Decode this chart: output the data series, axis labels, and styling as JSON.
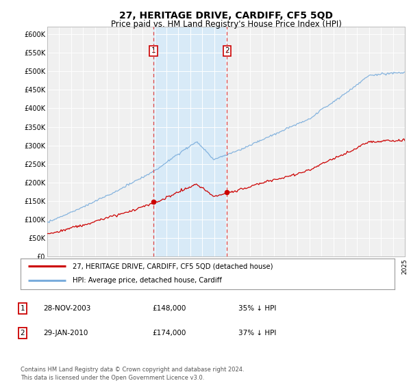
{
  "title": "27, HERITAGE DRIVE, CARDIFF, CF5 5QD",
  "subtitle": "Price paid vs. HM Land Registry's House Price Index (HPI)",
  "title_fontsize": 10,
  "subtitle_fontsize": 8.5,
  "ylim": [
    0,
    620000
  ],
  "yticks": [
    0,
    50000,
    100000,
    150000,
    200000,
    250000,
    300000,
    350000,
    400000,
    450000,
    500000,
    550000,
    600000
  ],
  "ytick_labels": [
    "£0",
    "£50K",
    "£100K",
    "£150K",
    "£200K",
    "£250K",
    "£300K",
    "£350K",
    "£400K",
    "£450K",
    "£500K",
    "£550K",
    "£600K"
  ],
  "x_start_year": 1995,
  "x_end_year": 2025,
  "hpi_color": "#7aaddc",
  "price_color": "#cc0000",
  "marker1_year": 2003.917,
  "marker1_price": 148000,
  "marker2_year": 2010.083,
  "marker2_price": 174000,
  "legend_line1": "27, HERITAGE DRIVE, CARDIFF, CF5 5QD (detached house)",
  "legend_line2": "HPI: Average price, detached house, Cardiff",
  "annotation_label1": "1",
  "annotation_date1": "28-NOV-2003",
  "annotation_price1": "£148,000",
  "annotation_pct1": "35% ↓ HPI",
  "annotation_label2": "2",
  "annotation_date2": "29-JAN-2010",
  "annotation_price2": "£174,000",
  "annotation_pct2": "37% ↓ HPI",
  "footer": "Contains HM Land Registry data © Crown copyright and database right 2024.\nThis data is licensed under the Open Government Licence v3.0.",
  "background_color": "#ffffff",
  "plot_bg_color": "#f0f0f0",
  "grid_color": "#ffffff",
  "shaded_color": "#d8eaf7"
}
